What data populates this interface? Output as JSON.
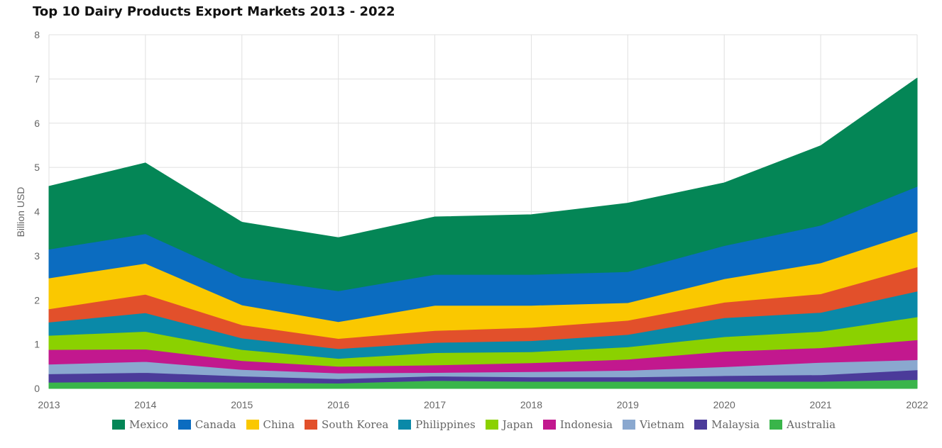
{
  "title": "Top 10 Dairy Products Export Markets 2013 - 2022",
  "chart_data": {
    "type": "area",
    "stacked": true,
    "title": "Top 10 Dairy Products Export Markets 2013 - 2022",
    "xlabel": "",
    "ylabel": "Billion USD",
    "x": [
      "2013",
      "2014",
      "2015",
      "2016",
      "2017",
      "2018",
      "2019",
      "2020",
      "2021",
      "2022"
    ],
    "ylim": [
      0,
      8
    ],
    "yticks": [
      0,
      1,
      2,
      3,
      4,
      5,
      6,
      7,
      8
    ],
    "grid": true,
    "legend": "bottom",
    "series": [
      {
        "name": "Australia",
        "color": "#39b54a",
        "values": [
          0.14,
          0.16,
          0.14,
          0.12,
          0.18,
          0.16,
          0.16,
          0.16,
          0.16,
          0.2
        ]
      },
      {
        "name": "Malaysia",
        "color": "#4b3b9a",
        "values": [
          0.19,
          0.2,
          0.14,
          0.1,
          0.1,
          0.1,
          0.1,
          0.13,
          0.15,
          0.22
        ]
      },
      {
        "name": "Vietnam",
        "color": "#8aa8cf",
        "values": [
          0.22,
          0.25,
          0.15,
          0.13,
          0.08,
          0.12,
          0.15,
          0.2,
          0.28,
          0.23
        ]
      },
      {
        "name": "Indonesia",
        "color": "#c2188e",
        "values": [
          0.33,
          0.28,
          0.2,
          0.15,
          0.17,
          0.2,
          0.25,
          0.35,
          0.33,
          0.45
        ]
      },
      {
        "name": "Japan",
        "color": "#8bd100",
        "values": [
          0.32,
          0.4,
          0.25,
          0.18,
          0.28,
          0.25,
          0.28,
          0.33,
          0.37,
          0.52
        ]
      },
      {
        "name": "Philippines",
        "color": "#0a89a8",
        "values": [
          0.3,
          0.42,
          0.26,
          0.22,
          0.23,
          0.25,
          0.28,
          0.43,
          0.43,
          0.58
        ]
      },
      {
        "name": "South Korea",
        "color": "#e2502b",
        "values": [
          0.3,
          0.42,
          0.3,
          0.23,
          0.27,
          0.3,
          0.32,
          0.35,
          0.42,
          0.55
        ]
      },
      {
        "name": "China",
        "color": "#fac800",
        "values": [
          0.7,
          0.7,
          0.45,
          0.38,
          0.57,
          0.5,
          0.4,
          0.53,
          0.7,
          0.8
        ]
      },
      {
        "name": "Canada",
        "color": "#0b6cc0",
        "values": [
          0.65,
          0.67,
          0.62,
          0.7,
          0.7,
          0.7,
          0.7,
          0.75,
          0.85,
          1.02
        ]
      },
      {
        "name": "Mexico",
        "color": "#048656",
        "values": [
          1.42,
          1.6,
          1.25,
          1.2,
          1.3,
          1.35,
          1.55,
          1.42,
          1.8,
          2.45
        ]
      }
    ]
  },
  "legend_order": [
    "Mexico",
    "Canada",
    "China",
    "South Korea",
    "Philippines",
    "Japan",
    "Indonesia",
    "Vietnam",
    "Malaysia",
    "Australia"
  ]
}
